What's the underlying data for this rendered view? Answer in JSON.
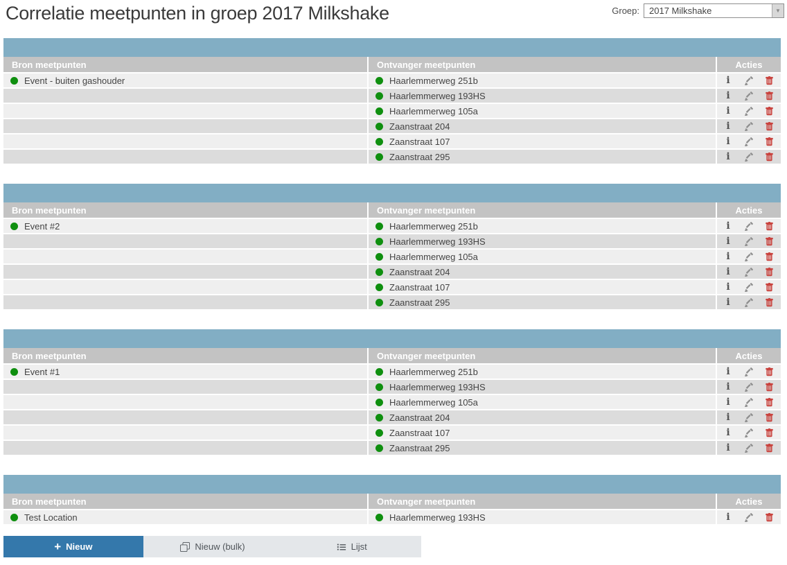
{
  "page": {
    "title": "Correlatie meetpunten in groep 2017 Milkshake"
  },
  "group_selector": {
    "label": "Groep:",
    "value": "2017 Milkshake"
  },
  "columns": {
    "source": "Bron meetpunten",
    "receiver": "Ontvanger meetpunten",
    "actions": "Acties"
  },
  "sections": [
    {
      "source": "Event - buiten gashouder",
      "receivers": [
        "Haarlemmerweg 251b",
        "Haarlemmerweg 193HS",
        "Haarlemmerweg 105a",
        "Zaanstraat 204",
        "Zaanstraat 107",
        "Zaanstraat 295"
      ]
    },
    {
      "source": "Event #2",
      "receivers": [
        "Haarlemmerweg 251b",
        "Haarlemmerweg 193HS",
        "Haarlemmerweg 105a",
        "Zaanstraat 204",
        "Zaanstraat 107",
        "Zaanstraat 295"
      ]
    },
    {
      "source": "Event #1",
      "receivers": [
        "Haarlemmerweg 251b",
        "Haarlemmerweg 193HS",
        "Haarlemmerweg 105a",
        "Zaanstraat 204",
        "Zaanstraat 107",
        "Zaanstraat 295"
      ]
    },
    {
      "source": "Test Location",
      "receivers": [
        "Haarlemmerweg 193HS"
      ]
    }
  ],
  "icons": {
    "info": "i",
    "edit": "pencil-icon",
    "delete": "trash-icon",
    "plus": "+",
    "dropdown_arrow": "▼",
    "new_bulk": "copy-icon",
    "list": "list-icon"
  },
  "footer_buttons": [
    {
      "label": "Nieuw",
      "primary": true
    },
    {
      "label": "Nieuw (bulk)",
      "primary": false
    },
    {
      "label": "Lijst",
      "primary": false
    }
  ],
  "colors": {
    "section_header": "#82aec4",
    "column_header": "#c3c3c3",
    "row_light": "#efefef",
    "row_dark": "#dcdcdc",
    "status_green": "#0f8f0f",
    "accent_blue": "#3478ab",
    "delete_red": "#c9433e",
    "button_gray": "#e4e7ea"
  }
}
